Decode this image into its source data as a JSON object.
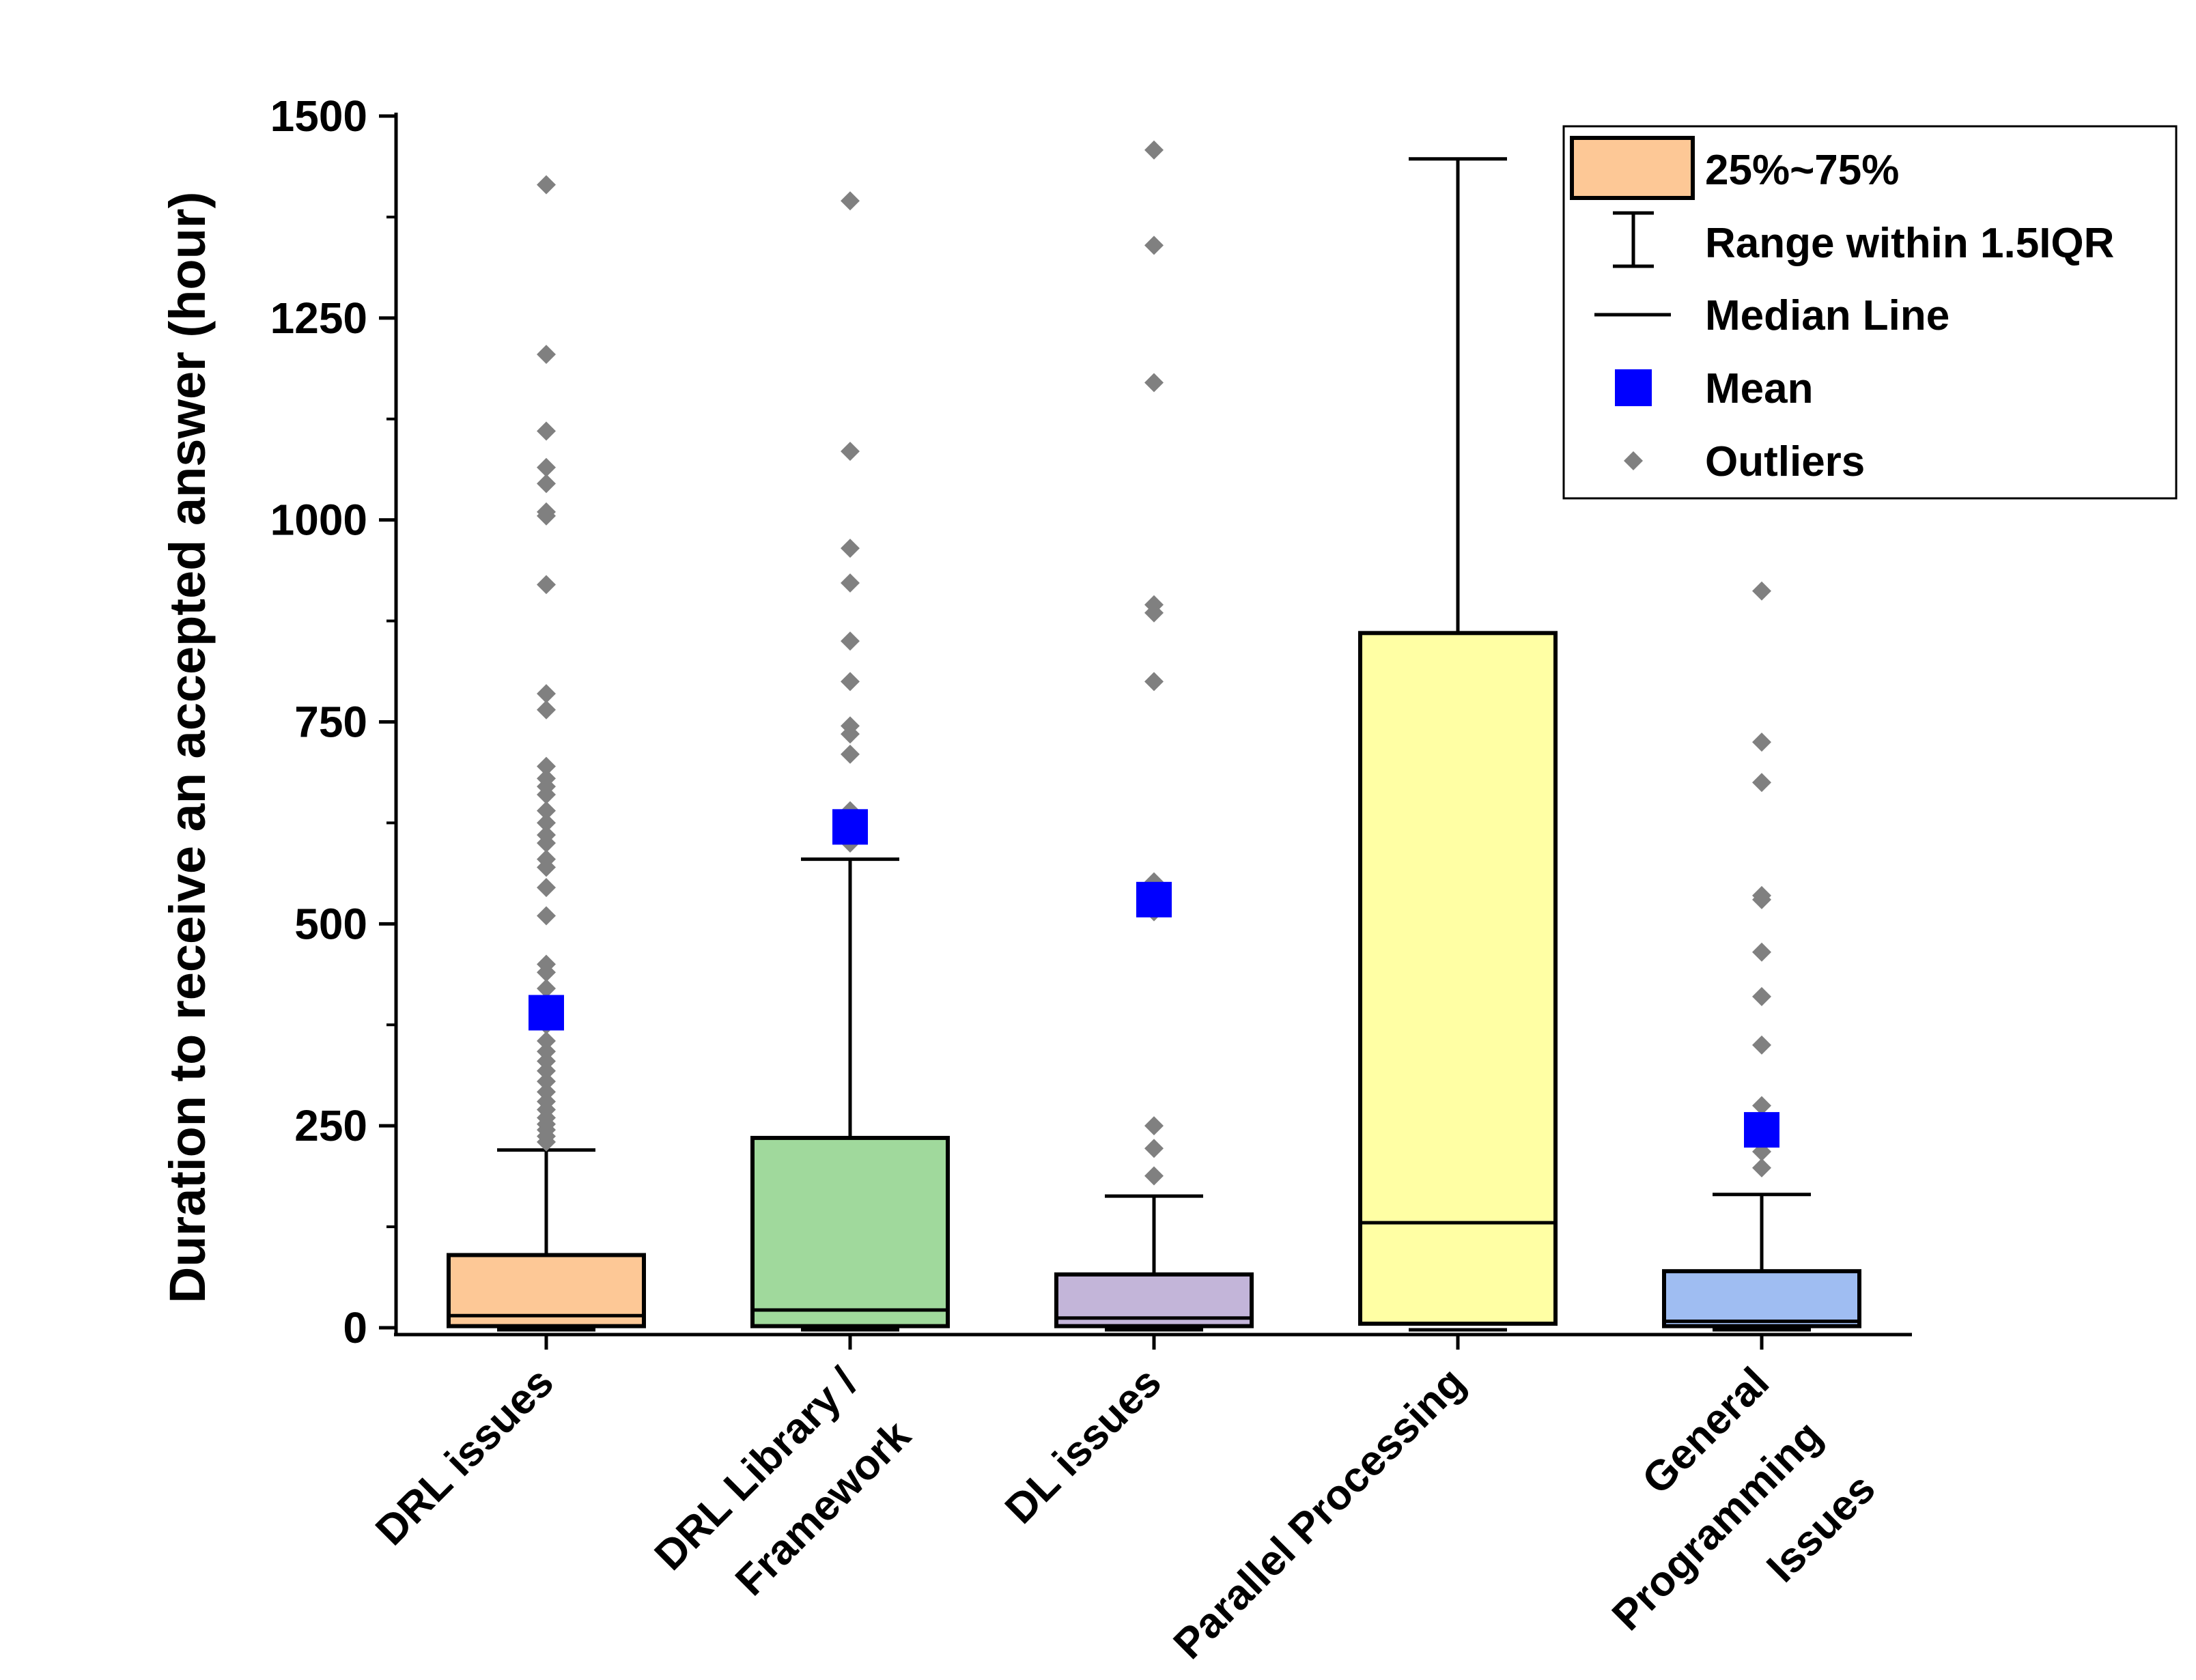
{
  "chart_data": {
    "type": "box",
    "ylabel": "Duration to receive an accepted answer (hour)",
    "xlabel": "",
    "ylim": [
      -15,
      1500
    ],
    "yticks": [
      0,
      250,
      500,
      750,
      1000,
      1250,
      1500
    ],
    "grid": false,
    "legend_position": "top-right",
    "categories": [
      [
        "DRL issues"
      ],
      [
        "DRL Library /",
        "Framework"
      ],
      [
        "DL issues"
      ],
      [
        "Parallel Processing"
      ],
      [
        "General",
        "Programming",
        "Issues"
      ]
    ],
    "boxes": [
      {
        "color": "#FDC896",
        "q1": 2,
        "median": 15,
        "q3": 90,
        "whisker_low": 0,
        "whisker_high": 220,
        "mean": 390,
        "outliers": [
          230,
          237,
          245,
          252,
          260,
          270,
          280,
          292,
          305,
          318,
          330,
          342,
          355,
          375,
          400,
          420,
          440,
          450,
          510,
          545,
          570,
          580,
          600,
          610,
          625,
          640,
          660,
          670,
          680,
          695,
          765,
          785,
          920,
          1005,
          1010,
          1045,
          1065,
          1110,
          1205,
          1415
        ]
      },
      {
        "color": "#A0D99C",
        "q1": 2,
        "median": 22,
        "q3": 235,
        "whisker_low": 0,
        "whisker_high": 580,
        "mean": 620,
        "outliers": [
          600,
          610,
          635,
          640,
          710,
          735,
          745,
          800,
          850,
          922,
          965,
          1085,
          1395
        ]
      },
      {
        "color": "#C3B5D9",
        "q1": 2,
        "median": 12,
        "q3": 66,
        "whisker_low": 0,
        "whisker_high": 163,
        "mean": 530,
        "outliers": [
          188,
          222,
          250,
          515,
          525,
          552,
          800,
          885,
          895,
          1170,
          1340,
          1458
        ]
      },
      {
        "color": "#FFFFA4",
        "q1": 5,
        "median": 130,
        "q3": 860,
        "whisker_low": 0,
        "whisker_high": 1447,
        "mean": null,
        "outliers": []
      },
      {
        "color": "#9FBDF2",
        "q1": 2,
        "median": 8,
        "q3": 70,
        "whisker_low": 0,
        "whisker_high": 165,
        "mean": 245,
        "outliers": [
          198,
          218,
          228,
          275,
          350,
          410,
          465,
          530,
          535,
          675,
          725,
          912
        ]
      }
    ],
    "legend": [
      {
        "key": "box",
        "label": "25%~75%",
        "color": "#FDC896"
      },
      {
        "key": "whisker",
        "label": "Range within 1.5IQR"
      },
      {
        "key": "median",
        "label": "Median Line"
      },
      {
        "key": "mean",
        "label": "Mean",
        "color": "#0000FF"
      },
      {
        "key": "outlier",
        "label": "Outliers",
        "color": "#808080"
      }
    ]
  }
}
